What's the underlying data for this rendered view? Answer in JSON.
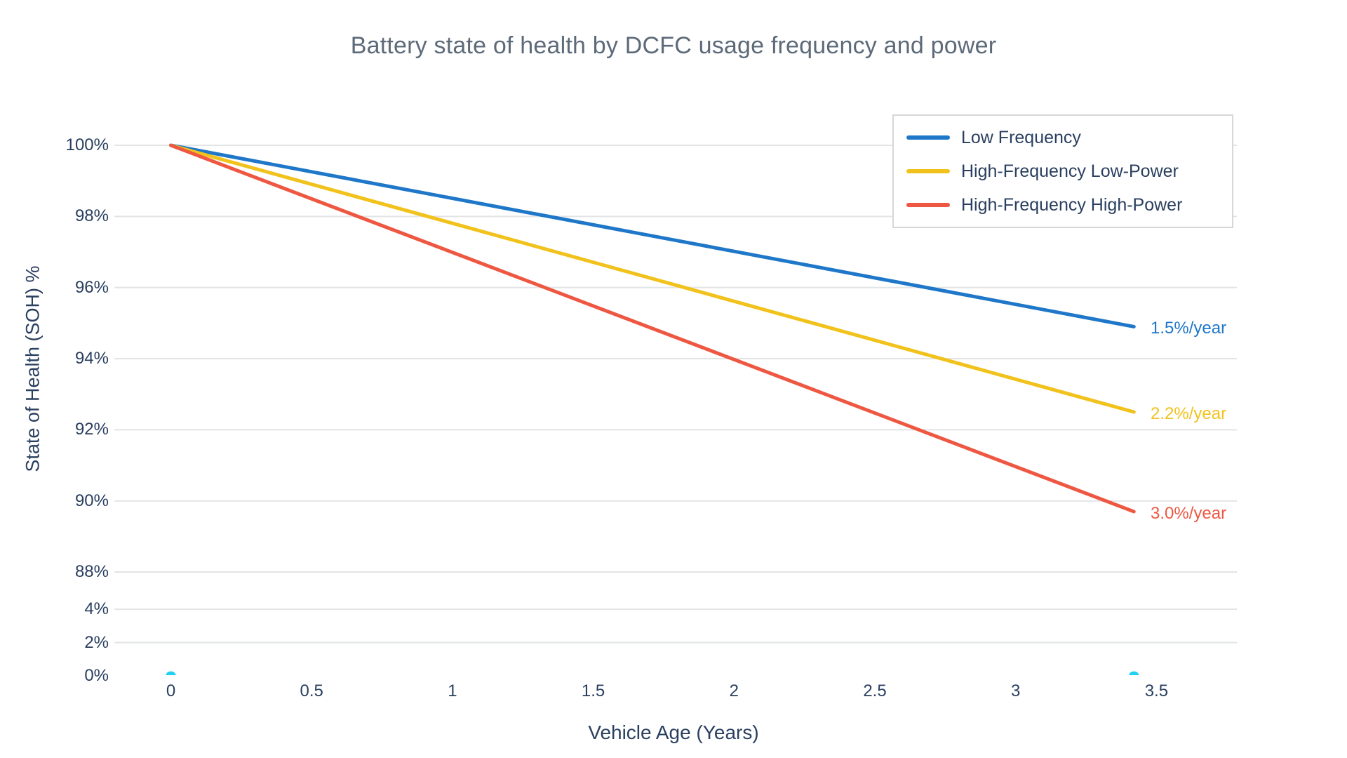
{
  "chart": {
    "title": "Battery state of health by DCFC usage frequency and power",
    "x_axis": {
      "title": "Vehicle Age (Years)"
    },
    "y_axis": {
      "title": "State of Health (SOH) %"
    }
  },
  "chart_data": {
    "type": "line",
    "title": "Battery state of health by DCFC usage frequency and power",
    "xlabel": "Vehicle Age (Years)",
    "ylabel": "State of Health (SOH) %",
    "x_tick_labels": [
      "0",
      "0.5",
      "1",
      "1.5",
      "2",
      "2.5",
      "3",
      "3.5"
    ],
    "x_tick_values": [
      0,
      0.5,
      1,
      1.5,
      2,
      2.5,
      3,
      3.5
    ],
    "y_tick_labels": [
      "100%",
      "98%",
      "96%",
      "94%",
      "92%",
      "90%",
      "88%",
      "4%",
      "2%",
      "0%"
    ],
    "y_tick_values": [
      100,
      98,
      96,
      94,
      92,
      90,
      88,
      4,
      2,
      0
    ],
    "grid": true,
    "legend_position": "top-right",
    "series": [
      {
        "name": "Low Frequency",
        "color": "#1e77c8",
        "degradation_rate_pct_per_year": 1.5,
        "annotation": "1.5%/year",
        "x": [
          0,
          3.42
        ],
        "y": [
          100,
          94.9
        ]
      },
      {
        "name": "High-Frequency Low-Power",
        "color": "#f2c21c",
        "degradation_rate_pct_per_year": 2.2,
        "annotation": "2.2%/year",
        "x": [
          0,
          3.42
        ],
        "y": [
          100,
          92.5
        ]
      },
      {
        "name": "High-Frequency High-Power",
        "color": "#ee5741",
        "degradation_rate_pct_per_year": 3.0,
        "annotation": "3.0%/year",
        "x": [
          0,
          3.42
        ],
        "y": [
          100,
          89.7
        ]
      }
    ],
    "extra_markers": {
      "name": "cyan-baseline-markers",
      "color": "#22d0f2",
      "points": [
        {
          "x": 0,
          "y": 0
        },
        {
          "x": 3.42,
          "y": 0
        }
      ]
    }
  },
  "colors": {
    "grid": "#e2e4e6",
    "tick_text": "#2a3f5f",
    "title_text": "#5d6a79"
  }
}
